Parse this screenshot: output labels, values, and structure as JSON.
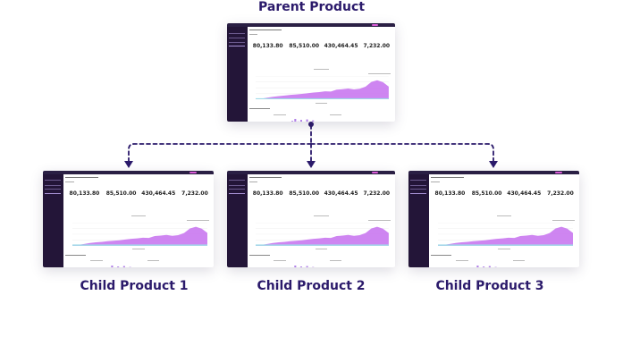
{
  "diagram": {
    "parent_title": "Parent Product",
    "child_titles": [
      "Child Product 1",
      "Child Product 2",
      "Child Product 3"
    ],
    "accent_color": "#2b1a6b",
    "chart_fill_color": "#c978f0"
  },
  "screenshot": {
    "kpis": [
      "80,133.80",
      "85,510.00",
      "430,464.45",
      "7,232.00"
    ],
    "area_profile": [
      0.02,
      0.04,
      0.08,
      0.12,
      0.15,
      0.17,
      0.2,
      0.22,
      0.24,
      0.27,
      0.3,
      0.32,
      0.35,
      0.34,
      0.42,
      0.44,
      0.47,
      0.43,
      0.46,
      0.55,
      0.75,
      0.82,
      0.74,
      0.55
    ]
  }
}
